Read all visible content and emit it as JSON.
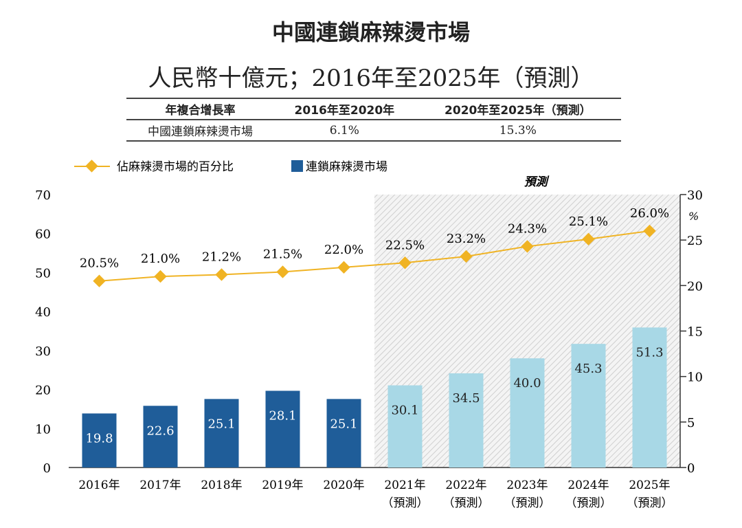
{
  "chart_data": {
    "type": "bar+line",
    "title": "中國連鎖麻辣燙市場",
    "subtitle": "人民幣十億元；2016年至2025年（預測）",
    "cagr_table": {
      "headers": [
        "年複合增長率",
        "2016年至2020年",
        "2020年至2025年（預測）"
      ],
      "rows": [
        [
          "中國連鎖麻辣燙市場",
          "6.1%",
          "15.3%"
        ]
      ]
    },
    "legend": {
      "line": "佔麻辣燙市場的百分比",
      "bar": "連鎖麻辣燙市場",
      "placement": "top-left"
    },
    "forecast_label": "預測",
    "categories": [
      "2016年",
      "2017年",
      "2018年",
      "2019年",
      "2020年",
      "2021年",
      "2022年",
      "2023年",
      "2024年",
      "2025年"
    ],
    "category_sublabels": [
      "",
      "",
      "",
      "",
      "",
      "（預測）",
      "（預測）",
      "（預測）",
      "（預測）",
      "（預測）"
    ],
    "series": [
      {
        "name": "連鎖麻辣燙市場",
        "type": "bar",
        "axis": "left",
        "values": [
          19.8,
          22.6,
          25.1,
          28.1,
          25.1,
          30.1,
          34.5,
          40.0,
          45.3,
          51.3
        ],
        "labels": [
          "19.8",
          "22.6",
          "25.1",
          "28.1",
          "25.1",
          "30.1",
          "34.5",
          "40.0",
          "45.3",
          "51.3"
        ]
      },
      {
        "name": "佔麻辣燙市場的百分比",
        "type": "line",
        "axis": "right",
        "values": [
          20.5,
          21.0,
          21.2,
          21.5,
          22.0,
          22.5,
          23.2,
          24.3,
          25.1,
          26.0
        ],
        "labels": [
          "20.5%",
          "21.0%",
          "21.2%",
          "21.5%",
          "22.0%",
          "22.5%",
          "23.2%",
          "24.3%",
          "25.1%",
          "26.0%"
        ]
      }
    ],
    "left_axis": {
      "ylim": [
        0,
        70
      ],
      "ticks": [
        "0",
        "10",
        "20",
        "30",
        "40",
        "50",
        "60",
        "70"
      ]
    },
    "right_axis": {
      "ylim": [
        0,
        30
      ],
      "ticks": [
        "0",
        "5",
        "10",
        "15",
        "20",
        "25",
        "30"
      ],
      "unit": "%"
    },
    "forecast_start_index": 5,
    "grid": false,
    "colors": {
      "bar_actual": "#1f5d99",
      "bar_forecast": "#a8d8e6",
      "line": "#f0b323",
      "forecast_hatch": "#d6d6d6"
    }
  }
}
